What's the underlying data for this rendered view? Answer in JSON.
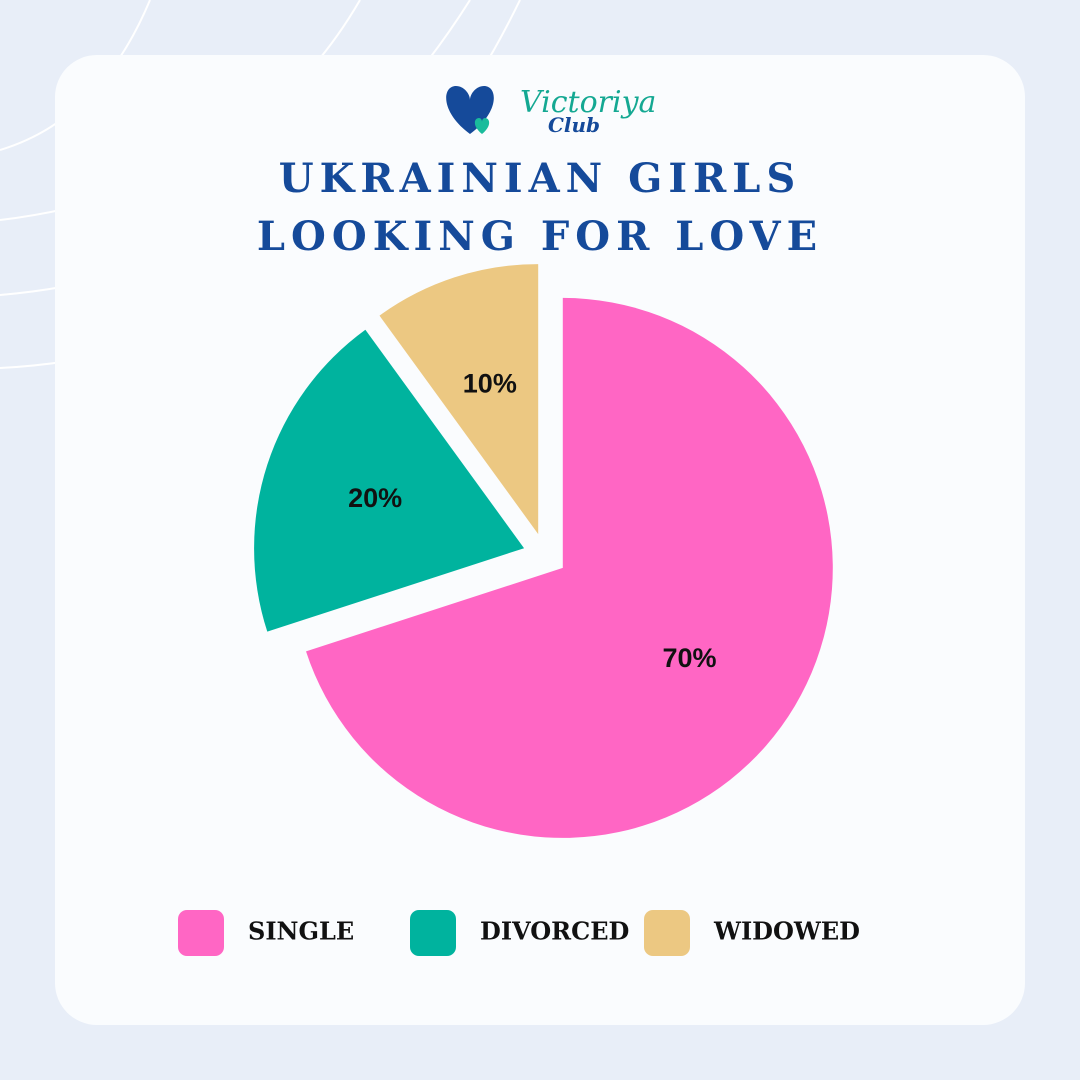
{
  "logo": {
    "line1": "Victoriya",
    "line2": "Club"
  },
  "chart_data": {
    "type": "pie",
    "title": "UKRAINIAN GIRLS LOOKING FOR LOVE",
    "categories": [
      "SINGLE",
      "DIVORCED",
      "WIDOWED"
    ],
    "values": [
      70,
      20,
      10
    ],
    "value_labels": [
      "70%",
      "20%",
      "10%"
    ],
    "colors": [
      "#ff66c4",
      "#00b39e",
      "#ecc882"
    ]
  }
}
